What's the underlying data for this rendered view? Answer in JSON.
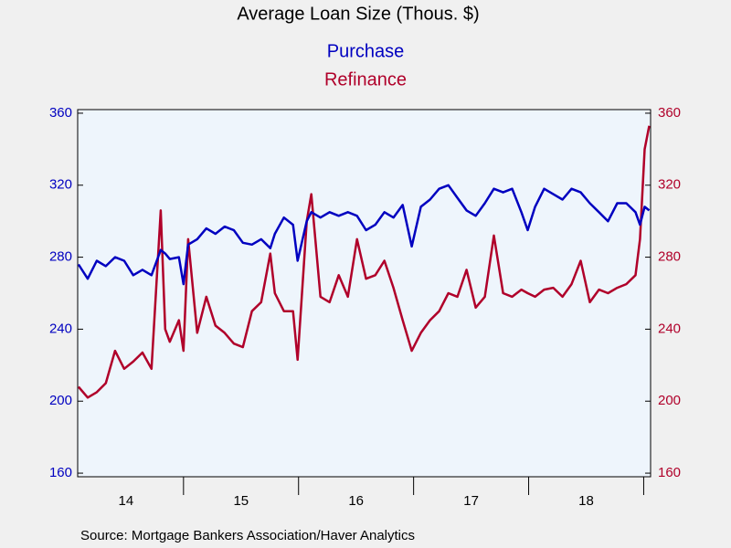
{
  "chart_data": {
    "type": "line",
    "title": "Average Loan Size (Thous. $)",
    "source": "Source:  Mortgage Bankers Association/Haver Analytics",
    "x": [
      14.087,
      14.167,
      14.246,
      14.325,
      14.405,
      14.484,
      14.563,
      14.643,
      14.722,
      14.802,
      14.841,
      14.881,
      14.96,
      15.0,
      15.04,
      15.119,
      15.198,
      15.278,
      15.357,
      15.437,
      15.516,
      15.595,
      15.675,
      15.754,
      15.794,
      15.873,
      15.952,
      15.992,
      16.071,
      16.111,
      16.19,
      16.27,
      16.349,
      16.429,
      16.508,
      16.587,
      16.667,
      16.746,
      16.825,
      16.905,
      16.984,
      17.063,
      17.143,
      17.222,
      17.302,
      17.381,
      17.46,
      17.54,
      17.619,
      17.698,
      17.778,
      17.857,
      17.937,
      17.992,
      18.056,
      18.135,
      18.214,
      18.294,
      18.373,
      18.452,
      18.532,
      18.611,
      18.69,
      18.77,
      18.849,
      18.929,
      18.968,
      19.008,
      19.048
    ],
    "series": [
      {
        "name": "Purchase",
        "color": "#0000c0",
        "axis": "y",
        "values": [
          276,
          268,
          278,
          275,
          280,
          278,
          270,
          273,
          270,
          284,
          282,
          279,
          280,
          265,
          287,
          290,
          296,
          293,
          297,
          295,
          288,
          287,
          290,
          285,
          293,
          302,
          298,
          278,
          300,
          305,
          302,
          305,
          303,
          305,
          303,
          295,
          298,
          305,
          302,
          309,
          286,
          308,
          312,
          318,
          320,
          313,
          306,
          303,
          310,
          318,
          316,
          318,
          305,
          295,
          308,
          318,
          315,
          312,
          318,
          316,
          310,
          305,
          300,
          310,
          310,
          305,
          298,
          308,
          306
        ]
      },
      {
        "name": "Refinance",
        "color": "#b0002a",
        "axis": "y2",
        "values": [
          208,
          202,
          205,
          210,
          228,
          218,
          222,
          227,
          218,
          306,
          240,
          233,
          245,
          228,
          290,
          238,
          258,
          242,
          238,
          232,
          230,
          250,
          255,
          282,
          260,
          250,
          250,
          223,
          300,
          315,
          258,
          255,
          270,
          258,
          290,
          268,
          270,
          278,
          263,
          245,
          228,
          238,
          245,
          250,
          260,
          258,
          273,
          252,
          258,
          292,
          260,
          258,
          262,
          260,
          258,
          262,
          263,
          258,
          265,
          278,
          255,
          262,
          260,
          263,
          265,
          270,
          290,
          340,
          353
        ]
      }
    ],
    "xlim": [
      14.08,
      19.06
    ],
    "xticks": [
      15,
      16,
      17,
      18,
      19
    ],
    "xlabels": [
      {
        "value": 14.5,
        "label": "14"
      },
      {
        "value": 15.5,
        "label": "15"
      },
      {
        "value": 16.5,
        "label": "16"
      },
      {
        "value": 17.5,
        "label": "17"
      },
      {
        "value": 18.5,
        "label": "18"
      }
    ],
    "ylim": [
      158,
      362
    ],
    "yticks": [
      160,
      200,
      240,
      280,
      320,
      360
    ],
    "y2lim": [
      158,
      362
    ],
    "y2ticks": [
      160,
      200,
      240,
      280,
      320,
      360
    ]
  }
}
